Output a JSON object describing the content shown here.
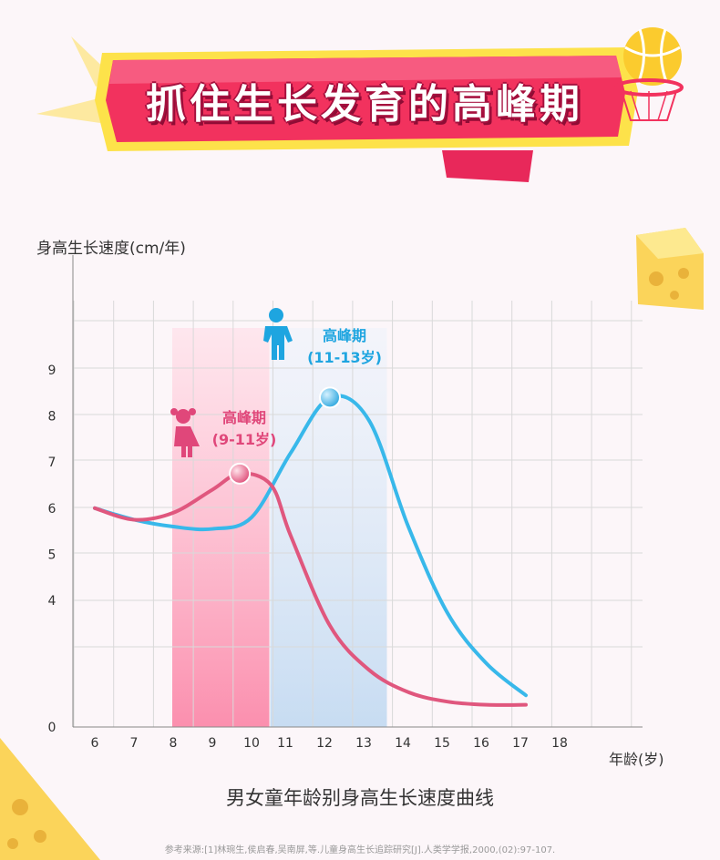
{
  "banner": {
    "title": "抓住生长发育的高峰期"
  },
  "colors": {
    "boys": "#38b8ea",
    "girls": "#e0577e",
    "banner": "#f2325e",
    "banner_border": "#fde24a"
  },
  "chart_data": {
    "type": "line",
    "title": "男女童年龄别身高生长速度曲线",
    "ylabel": "身高生长速度(cm/年)",
    "xlabel": "年龄(岁)",
    "x_ticks": [
      6,
      7,
      8,
      9,
      10,
      11,
      12,
      13,
      14,
      15,
      16,
      17,
      18
    ],
    "y_ticks": [
      0,
      4,
      5,
      6,
      7,
      8,
      9
    ],
    "grid": true,
    "series": [
      {
        "key": "boys",
        "color": "#38b8ea",
        "points": [
          [
            6,
            6.0
          ],
          [
            7,
            5.75
          ],
          [
            8,
            5.6
          ],
          [
            9,
            5.55
          ],
          [
            10,
            5.8
          ],
          [
            11,
            7.2
          ],
          [
            12,
            8.4
          ],
          [
            13,
            7.9
          ],
          [
            14,
            5.6
          ],
          [
            15,
            3.6
          ],
          [
            16,
            2.0
          ],
          [
            17,
            1.0
          ]
        ]
      },
      {
        "key": "girls",
        "color": "#e0577e",
        "points": [
          [
            6,
            6.0
          ],
          [
            7,
            5.75
          ],
          [
            8,
            5.9
          ],
          [
            9,
            6.4
          ],
          [
            9.7,
            6.75
          ],
          [
            10.5,
            6.5
          ],
          [
            11,
            5.4
          ],
          [
            12,
            3.2
          ],
          [
            13,
            1.8
          ],
          [
            14,
            1.1
          ],
          [
            15,
            0.8
          ],
          [
            16,
            0.7
          ],
          [
            17,
            0.7
          ]
        ]
      }
    ],
    "annotations": [
      {
        "key": "girls",
        "label": "高峰期",
        "range": "(9-11岁)",
        "peak": [
          9.7,
          6.75
        ],
        "band": [
          8,
          10.5
        ]
      },
      {
        "key": "boys",
        "label": "高峰期",
        "range": "(11-13岁)",
        "peak": [
          12,
          8.4
        ],
        "band": [
          10.5,
          13.5
        ]
      }
    ]
  },
  "source": "参考来源:[1]林琬生,侯启春,吴南屏,等.儿童身高生长追踪研究[J].人类学学报,2000,(02):97-107."
}
